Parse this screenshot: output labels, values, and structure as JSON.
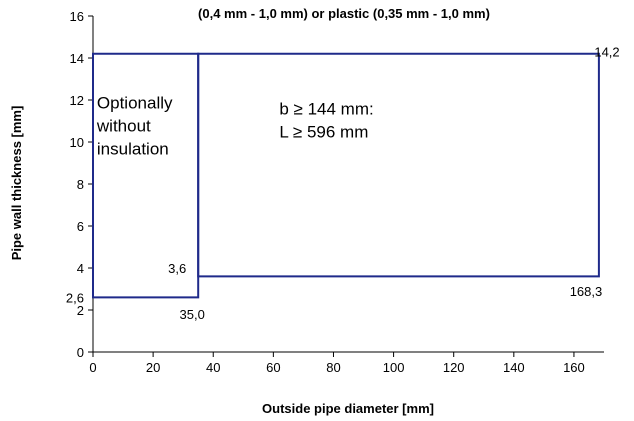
{
  "chart_data": {
    "type": "line",
    "title": "(0,4 mm - 1,0 mm) or plastic (0,35 mm - 1,0 mm)",
    "xlabel": "Outside pipe diameter [mm]",
    "ylabel": "Pipe wall thickness [mm]",
    "xlim": [
      0,
      170
    ],
    "ylim": [
      0,
      16
    ],
    "x_ticks": [
      "0",
      "20",
      "40",
      "60",
      "80",
      "100",
      "120",
      "140",
      "160"
    ],
    "y_ticks": [
      "0",
      "2",
      "4",
      "6",
      "8",
      "10",
      "12",
      "14",
      "16"
    ],
    "grid": false,
    "line_color": "#1f2a8a",
    "regions": [
      {
        "points": [
          [
            0,
            2.6
          ],
          [
            35,
            2.6
          ],
          [
            35,
            14.2
          ],
          [
            0,
            14.2
          ]
        ],
        "lines": [
          "Optionally",
          "without",
          "insulation"
        ],
        "label_pos": [
          1.3,
          11.6
        ]
      },
      {
        "points": [
          [
            35,
            3.6
          ],
          [
            168.3,
            3.6
          ],
          [
            168.3,
            14.2
          ],
          [
            35,
            14.2
          ]
        ],
        "lines": [
          "b ≥ 144 mm:",
          "L ≥ 596 mm"
        ],
        "label_pos": [
          62,
          11.3
        ]
      }
    ],
    "annotations": [
      {
        "text": "2,6",
        "x": -6,
        "y": 2.6,
        "anchor": "middle"
      },
      {
        "text": "35,0",
        "x": 33,
        "y": 1.8,
        "anchor": "middle"
      },
      {
        "text": "3,6",
        "x": 28,
        "y": 4.0,
        "anchor": "middle"
      },
      {
        "text": "14,2",
        "x": 171,
        "y": 14.3,
        "anchor": "middle"
      },
      {
        "text": "168,3",
        "x": 164,
        "y": 2.9,
        "anchor": "middle"
      }
    ]
  }
}
